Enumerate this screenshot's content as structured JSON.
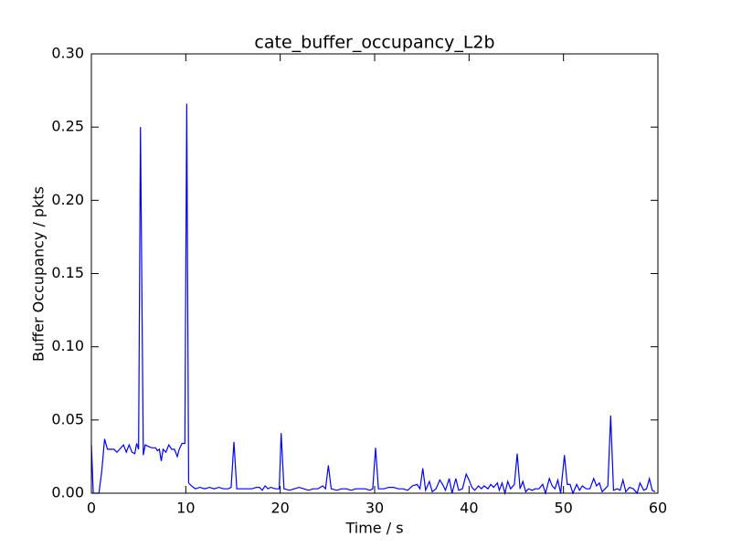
{
  "chart_data": {
    "type": "line",
    "title": "cate_buffer_occupancy_L2b",
    "x_label": "Time / s",
    "y_label": "Buffer Occupancy / pkts",
    "xlim": [
      0,
      60
    ],
    "ylim": [
      0,
      0.3
    ],
    "xticks": [
      0,
      10,
      20,
      30,
      40,
      50,
      60
    ],
    "yticks": [
      {
        "value": 0,
        "label": "0.00"
      },
      {
        "value": 0.05,
        "label": "0.05"
      },
      {
        "value": 0.1,
        "label": "0.10"
      },
      {
        "value": 0.15,
        "label": "0.15"
      },
      {
        "value": 0.2,
        "label": "0.20"
      },
      {
        "value": 0.25,
        "label": "0.25"
      },
      {
        "value": 0.3,
        "label": "0.30"
      }
    ],
    "grid": false,
    "x": [
      0,
      0.2,
      0.8,
      1.1,
      1.4,
      1.7,
      2.0,
      2.4,
      2.7,
      3.0,
      3.4,
      3.7,
      4.0,
      4.3,
      4.6,
      4.8,
      5.0,
      5.2,
      5.5,
      5.7,
      6.0,
      6.4,
      6.8,
      7.0,
      7.2,
      7.4,
      7.6,
      7.9,
      8.2,
      8.5,
      8.8,
      9.1,
      9.3,
      9.6,
      9.9,
      10.1,
      10.3,
      10.6,
      11.0,
      11.5,
      12,
      12.5,
      13,
      13.5,
      14,
      14.5,
      14.8,
      15.1,
      15.4,
      16,
      16.5,
      17,
      17.5,
      17.8,
      18.1,
      18.4,
      18.7,
      19,
      19.5,
      19.9,
      20.1,
      20.4,
      21,
      21.5,
      22,
      22.5,
      23,
      23.5,
      24,
      24.5,
      24.8,
      25.1,
      25.4,
      26,
      26.5,
      27,
      27.5,
      28,
      28.5,
      29,
      29.5,
      29.8,
      30.1,
      30.4,
      31,
      31.5,
      32,
      32.5,
      33,
      33.5,
      34,
      34.5,
      34.8,
      35.1,
      35.4,
      35.8,
      36.1,
      36.5,
      36.9,
      37.2,
      37.5,
      37.9,
      38.2,
      38.6,
      38.9,
      39.3,
      39.7,
      40,
      40.3,
      40.6,
      41,
      41.3,
      41.6,
      42,
      42.3,
      42.6,
      43,
      43.2,
      43.5,
      43.8,
      44.1,
      44.4,
      44.8,
      45.1,
      45.4,
      45.7,
      46,
      46.3,
      46.7,
      47,
      47.4,
      47.8,
      48.1,
      48.5,
      48.8,
      49.1,
      49.4,
      49.7,
      50.1,
      50.4,
      50.7,
      51,
      51.4,
      51.7,
      52,
      52.4,
      52.8,
      53.2,
      53.5,
      53.8,
      54.1,
      54.4,
      54.7,
      55,
      55.3,
      55.7,
      56,
      56.3,
      56.6,
      57,
      57.4,
      57.8,
      58.1,
      58.5,
      58.8,
      59.1,
      59.4,
      59.7
    ],
    "series": [
      {
        "color": "#0000ff",
        "values": [
          0.033,
          0,
          0,
          0.015,
          0.037,
          0.03,
          0.03,
          0.03,
          0.028,
          0.03,
          0.033,
          0.028,
          0.033,
          0.028,
          0.027,
          0.034,
          0.03,
          0.25,
          0.026,
          0.033,
          0.032,
          0.031,
          0.031,
          0.029,
          0.03,
          0.022,
          0.03,
          0.028,
          0.033,
          0.03,
          0.03,
          0.025,
          0.03,
          0.034,
          0.034,
          0.266,
          0.007,
          0.005,
          0.003,
          0.004,
          0.003,
          0.004,
          0.003,
          0.004,
          0.003,
          0.003,
          0.004,
          0.035,
          0.003,
          0.003,
          0.003,
          0.003,
          0.004,
          0.004,
          0.002,
          0.005,
          0.003,
          0.004,
          0.003,
          0.003,
          0.041,
          0.003,
          0.002,
          0.003,
          0.004,
          0.003,
          0.002,
          0.003,
          0.003,
          0.005,
          0.003,
          0.019,
          0.003,
          0.002,
          0.003,
          0.003,
          0.002,
          0.003,
          0.003,
          0.003,
          0.002,
          0.003,
          0.031,
          0.003,
          0.003,
          0.004,
          0.004,
          0.003,
          0.003,
          0.002,
          0.005,
          0.006,
          0.003,
          0.017,
          0.002,
          0.008,
          0.001,
          0.003,
          0.009,
          0.006,
          0.002,
          0.01,
          0,
          0.01,
          0.002,
          0.003,
          0.013,
          0.009,
          0.004,
          0.002,
          0.005,
          0.003,
          0.005,
          0.003,
          0.006,
          0.004,
          0.007,
          0.002,
          0.007,
          0,
          0.008,
          0.003,
          0.006,
          0.027,
          0.003,
          0.008,
          0.001,
          0.003,
          0.002,
          0.003,
          0.003,
          0.006,
          0,
          0.01,
          0.005,
          0.003,
          0.009,
          0,
          0.026,
          0.006,
          0.006,
          0,
          0.006,
          0.002,
          0.005,
          0.003,
          0.003,
          0.01,
          0.005,
          0.007,
          0.001,
          0.003,
          0.005,
          0.053,
          0.002,
          0.003,
          0.002,
          0.009,
          0.001,
          0.004,
          0.003,
          0,
          0.007,
          0.002,
          0.003,
          0.01,
          0.002,
          0.001
        ]
      }
    ]
  }
}
